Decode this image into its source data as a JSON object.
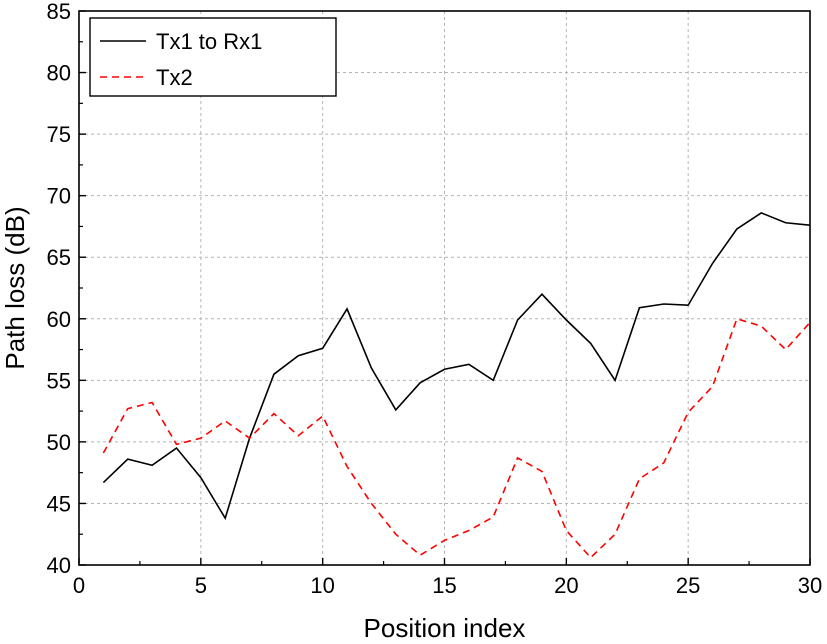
{
  "chart_data": {
    "type": "line",
    "title": "",
    "xlabel": "Position index",
    "ylabel": "Path loss (dB)",
    "xlim": [
      0,
      30
    ],
    "ylim": [
      40,
      85
    ],
    "xticks": [
      0,
      5,
      10,
      15,
      20,
      25,
      30
    ],
    "yticks": [
      40,
      45,
      50,
      55,
      60,
      65,
      70,
      75,
      80,
      85
    ],
    "grid": true,
    "legend_position": "top-left",
    "x": [
      1,
      2,
      3,
      4,
      5,
      6,
      7,
      8,
      9,
      10,
      11,
      12,
      13,
      14,
      15,
      16,
      17,
      18,
      19,
      20,
      21,
      22,
      23,
      24,
      25,
      26,
      27,
      28,
      29,
      30
    ],
    "series": [
      {
        "name": "Tx1 to Rx1",
        "color": "#000000",
        "dash": "solid",
        "values": [
          46.7,
          48.6,
          48.1,
          49.5,
          47.1,
          43.8,
          50.3,
          55.5,
          57.0,
          57.6,
          60.8,
          56.0,
          52.6,
          54.8,
          55.9,
          56.3,
          55.0,
          59.9,
          62.0,
          59.9,
          58.0,
          55.0,
          60.9,
          61.2,
          61.1,
          64.5,
          67.3,
          68.6,
          67.8,
          67.6
        ]
      },
      {
        "name": "Tx2",
        "color": "#ff0000",
        "dash": "dashed",
        "values": [
          49.1,
          52.7,
          53.2,
          49.8,
          50.3,
          51.7,
          50.3,
          52.3,
          50.5,
          52.1,
          48.0,
          45.0,
          42.5,
          40.8,
          42.0,
          42.8,
          43.9,
          48.7,
          47.6,
          42.8,
          40.6,
          42.5,
          47.0,
          48.3,
          52.4,
          54.5,
          60.0,
          59.4,
          57.5,
          59.7
        ]
      }
    ]
  }
}
